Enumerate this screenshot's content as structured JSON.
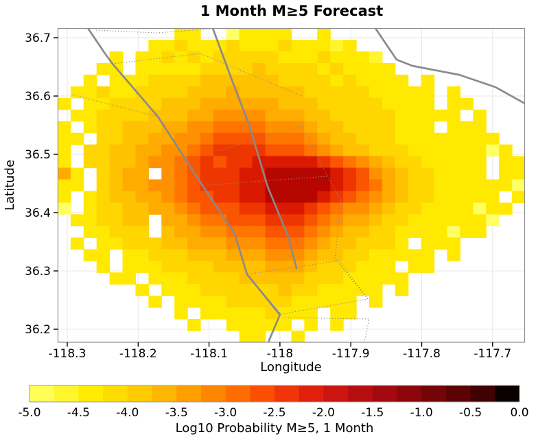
{
  "title": "1 Month M≥5 Forecast",
  "x_axis": {
    "label": "Longitude",
    "ticks": [
      -118.3,
      -118.2,
      -118.1,
      -118.0,
      -117.9,
      -117.8,
      -117.7
    ],
    "tick_labels": [
      "-118.3",
      "-118.2",
      "-118.1",
      "-118",
      "-117.9",
      "-117.8",
      "-117.7"
    ]
  },
  "y_axis": {
    "label": "Latitude",
    "ticks": [
      36.7,
      36.6,
      36.5,
      36.4,
      36.3,
      36.2
    ],
    "tick_labels": [
      "36.7",
      "36.6",
      "36.5",
      "36.4",
      "36.3",
      "36.2"
    ]
  },
  "colorbar": {
    "label": "Log10 Probability M≥5, 1 Month",
    "range": [
      -5.0,
      0.0
    ],
    "tick_values": [
      -5.0,
      -4.5,
      -4.0,
      -3.5,
      -3.0,
      -2.5,
      -2.0,
      -1.5,
      -1.0,
      -0.5,
      0.0
    ],
    "tick_labels": [
      "-5.0",
      "-4.5",
      "-4.0",
      "-3.5",
      "-3.0",
      "-2.5",
      "-2.0",
      "-1.5",
      "-1.0",
      "-0.5",
      "0.0"
    ],
    "segment_colors": [
      "#FFFF55",
      "#FFF62E",
      "#FFEC00",
      "#FFDC00",
      "#FFCA00",
      "#FFB600",
      "#FF9F00",
      "#FF8600",
      "#FF6C00",
      "#FA4F00",
      "#F03508",
      "#E0200D",
      "#CC1411",
      "#B70E12",
      "#A20A0F",
      "#8C060B",
      "#750407",
      "#5D0204",
      "#3F0102",
      "#0B0000"
    ]
  },
  "chart_data": {
    "type": "heatmap",
    "title": "1 Month M≥5 Forecast",
    "xlabel": "Longitude",
    "ylabel": "Latitude",
    "value_label": "Log10 Probability M≥5, 1 Month",
    "x_range": [
      -118.314,
      -117.655
    ],
    "y_range": [
      36.177,
      36.717
    ],
    "value_range": [
      -5.0,
      0.0
    ],
    "grid": {
      "ncols": 36,
      "nrows": 27,
      "lon_origin": -118.3136,
      "dlon": 0.018313,
      "lat_origin": 36.71647,
      "dlat": 0.019957,
      "encoding": {
        ".": null,
        "0": -5.0,
        "1": -4.75,
        "2": -4.5,
        "3": -4.25,
        "4": -4.0,
        "5": -3.75,
        "6": -3.5,
        "7": -3.25,
        "8": -3.0,
        "9": -2.75,
        "a": -2.5,
        "b": -2.25
      },
      "rows": [
        [
          "......",
          "...22.",
          ".02222",
          "..2...",
          "......",
          "......"
        ],
        [
          "......",
          ".22322",
          "232223",
          "22212.",
          "......",
          "......"
        ],
        [
          "....2.",
          "223232",
          "333332",
          "223222",
          "1.....",
          "......"
        ],
        [
          "...22.",
          "222223",
          "333433",
          "332322",
          "22....",
          "......"
        ],
        [
          "..2.22",
          "233334",
          "444443",
          "333232",
          "222.2.",
          "......"
        ],
        [
          ".22322",
          "333344",
          "454444",
          "433333",
          "22222.",
          "2....."
        ],
        [
          "2.2233",
          "334445",
          "555554",
          "443333",
          "32222.",
          "22...."
        ],
        [
          ".22333",
          "344455",
          "666655",
          "544333",
          "332222",
          "2.2..."
        ],
        [
          "2.2334",
          "445566",
          "777766",
          "654433",
          "33222.",
          "222..."
        ],
        [
          "22.334",
          "455667",
          "888877",
          "765443",
          "332222",
          "2222.."
        ],
        [
          "2.3344",
          "556678",
          "999988",
          "876544",
          "333222",
          "22202."
        ],
        [
          "2.3344",
          "566789",
          "899aaa",
          "aa9876",
          "543322",
          "222.22"
        ],
        [
          "52.345",
          "5.6789",
          "99aabb",
          "bbba98",
          "654332",
          "222.22"
        ],
        [
          "22.345",
          "566789",
          "99aabb",
          "bbba98",
          "754332",
          "222220"
        ],
        [
          "2.2344",
          "556788",
          "99aabb",
          "bba987",
          "654332",
          "2222.2"
        ],
        [
          "0.2334",
          "455678",
          "8899aa",
          "a98766",
          "543322",
          "22022."
        ],
        [
          ".22334",
          "4.5567",
          "788899",
          "987655",
          "433222",
          "2220.."
        ],
        [
          "..2233",
          "3.4556",
          "677788",
          "876544",
          "332222",
          "022..."
        ],
        [
          ".2.223",
          "334455",
          "566677",
          "765443",
          "332.22",
          "2....."
        ],
        [
          "..22.2",
          "233344",
          "455566",
          "654433",
          "22222.",
          "2....."
        ],
        [
          "...2.2",
          "223333",
          "444455",
          "543332",
          "22.22.",
          "......"
        ],
        [
          "....22",
          ".22233",
          "334444",
          "433322",
          "222...",
          "......"
        ],
        [
          "......",
          "2.2223",
          "333334",
          "332222",
          "2.2...",
          "......"
        ],
        [
          "......",
          ".2.222",
          "233333",
          "22222.",
          "2.....",
          "......"
        ],
        [
          "......",
          "...2.2",
          "222232",
          "22.22.",
          "......",
          "......"
        ],
        [
          "......",
          "....2.",
          ".22222",
          ".2.2..",
          "......",
          "......"
        ],
        [
          "......",
          "......",
          "..22..",
          "2.....",
          "......",
          "......"
        ]
      ]
    },
    "level_colors": {
      "0": "#FFFF66",
      "1": "#FFF42E",
      "2": "#FFE900",
      "3": "#FFD600",
      "4": "#FFC200",
      "5": "#FFAB00",
      "6": "#FF9100",
      "7": "#FF7500",
      "8": "#FA5500",
      "9": "#EE3600",
      "a": "#DA1A00",
      "b": "#B50600"
    },
    "fault_lines": {
      "solid": [
        [
          [
            -118.271,
            36.7165
          ],
          [
            -118.2468,
            36.6729
          ],
          [
            -118.2361,
            36.6553
          ],
          [
            -118.1722,
            36.5647
          ],
          [
            -118.1044,
            36.4376
          ],
          [
            -118.0638,
            36.3635
          ],
          [
            -118.0464,
            36.2941
          ],
          [
            -118.0,
            36.2247
          ],
          [
            -118.0165,
            36.1776
          ]
        ],
        [
          [
            -118.0948,
            36.7165
          ],
          [
            -118.0658,
            36.6212
          ],
          [
            -118.0435,
            36.5506
          ],
          [
            -118.0173,
            36.4447
          ],
          [
            -117.9883,
            36.3588
          ],
          [
            -117.9767,
            36.3047
          ]
        ],
        [
          [
            -117.8654,
            36.7165
          ],
          [
            -117.8354,
            36.6624
          ],
          [
            -117.8131,
            36.6518
          ],
          [
            -117.7473,
            36.6365
          ],
          [
            -117.696,
            36.6153
          ],
          [
            -117.6544,
            36.5871
          ]
        ]
      ],
      "dotted": [
        [
          [
            -118.2593,
            36.7129
          ],
          [
            -118.1742,
            36.7082
          ],
          [
            -118.0967,
            36.7153
          ]
        ],
        [
          [
            -118.2361,
            36.6553
          ],
          [
            -118.1122,
            36.6729
          ],
          [
            -117.969,
            36.6
          ]
        ],
        [
          [
            -118.2932,
            36.6024
          ],
          [
            -118.1722,
            36.5647
          ]
        ],
        [
          [
            -118.087,
            36.5059
          ],
          [
            -117.969,
            36.5482
          ],
          [
            -117.9322,
            36.4612
          ],
          [
            -117.9138,
            36.4212
          ]
        ],
        [
          [
            -118.1044,
            36.4471
          ],
          [
            -117.9332,
            36.4624
          ]
        ],
        [
          [
            -118.0464,
            36.2941
          ],
          [
            -117.9167,
            36.3176
          ],
          [
            -117.876,
            36.2518
          ],
          [
            -117.9981,
            36.2259
          ],
          [
            -118.0464,
            36.2941
          ]
        ],
        [
          [
            -117.9961,
            36.22
          ],
          [
            -117.8741,
            36.2176
          ],
          [
            -117.8809,
            36.1776
          ]
        ],
        [
          [
            -117.9138,
            36.4212
          ],
          [
            -117.9225,
            36.3212
          ],
          [
            -117.876,
            36.2518
          ]
        ]
      ]
    },
    "legend_position": "bottom",
    "grid_lines": true
  }
}
